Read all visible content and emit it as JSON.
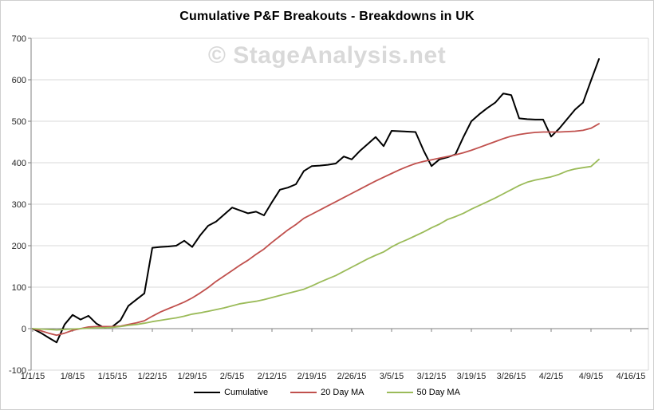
{
  "title": "Cumulative P&F Breakouts - Breakdowns in UK",
  "watermark": "© StageAnalysis.net",
  "colors": {
    "background": "#ffffff",
    "border": "#cfcfcf",
    "gridline": "#d9d9d9",
    "axis": "#808080",
    "watermark_text": "#d9d9d9",
    "cumulative_line": "#000000",
    "ma20_line": "#c0504d",
    "ma50_line": "#9bbb59"
  },
  "chart_data": {
    "type": "line",
    "title": "Cumulative P&F Breakouts - Breakdowns in UK",
    "xlabel": "",
    "ylabel": "",
    "ylim": [
      -100,
      700
    ],
    "y_ticks": [
      700,
      600,
      500,
      400,
      300,
      200,
      100,
      0,
      -100
    ],
    "y_tick_labels": [
      "700",
      "600",
      "500",
      "400",
      "300",
      "200",
      "100",
      "0",
      "-100"
    ],
    "x_tick_labels": [
      "1/1/15",
      "1/8/15",
      "1/15/15",
      "1/22/15",
      "1/29/15",
      "2/5/15",
      "2/12/15",
      "2/19/15",
      "2/26/15",
      "3/5/15",
      "3/12/15",
      "3/19/15",
      "3/26/15",
      "4/2/15",
      "4/9/15",
      "4/16/15"
    ],
    "grid": "horizontal",
    "legend_position": "bottom",
    "x": [
      "1/1/15",
      "1/2/15",
      "1/5/15",
      "1/6/15",
      "1/7/15",
      "1/8/15",
      "1/9/15",
      "1/12/15",
      "1/13/15",
      "1/14/15",
      "1/15/15",
      "1/16/15",
      "1/19/15",
      "1/20/15",
      "1/21/15",
      "1/22/15",
      "1/23/15",
      "1/26/15",
      "1/27/15",
      "1/28/15",
      "1/29/15",
      "1/30/15",
      "2/2/15",
      "2/3/15",
      "2/4/15",
      "2/5/15",
      "2/6/15",
      "2/9/15",
      "2/10/15",
      "2/11/15",
      "2/12/15",
      "2/13/15",
      "2/16/15",
      "2/17/15",
      "2/18/15",
      "2/19/15",
      "2/20/15",
      "2/23/15",
      "2/24/15",
      "2/25/15",
      "2/26/15",
      "2/27/15",
      "3/2/15",
      "3/3/15",
      "3/4/15",
      "3/5/15",
      "3/6/15",
      "3/9/15",
      "3/10/15",
      "3/11/15",
      "3/12/15",
      "3/13/15",
      "3/16/15",
      "3/17/15",
      "3/18/15",
      "3/19/15",
      "3/20/15",
      "3/23/15",
      "3/24/15",
      "3/25/15",
      "3/26/15",
      "3/27/15",
      "3/30/15",
      "3/31/15",
      "4/1/15",
      "4/2/15",
      "4/3/15",
      "4/6/15",
      "4/7/15",
      "4/8/15",
      "4/9/15",
      "4/10/15"
    ],
    "series": [
      {
        "name": "Cumulative",
        "color": "#000000",
        "width": 2,
        "values": [
          0,
          -10,
          -22,
          -33,
          10,
          33,
          22,
          31,
          12,
          2,
          5,
          20,
          55,
          70,
          85,
          195,
          197,
          198,
          200,
          212,
          197,
          225,
          248,
          258,
          275,
          292,
          285,
          278,
          282,
          273,
          305,
          335,
          340,
          348,
          380,
          392,
          393,
          395,
          398,
          415,
          408,
          428,
          445,
          462,
          440,
          477,
          476,
          475,
          474,
          430,
          392,
          408,
          413,
          420,
          462,
          500,
          517,
          532,
          545,
          567,
          563,
          507,
          505,
          504,
          504,
          463,
          482,
          505,
          528,
          545,
          598,
          650
        ]
      },
      {
        "name": "20 Day MA",
        "color": "#c0504d",
        "width": 1.8,
        "values": [
          0,
          -5,
          -11,
          -16,
          -11,
          -4,
          0,
          4,
          5,
          5,
          5,
          6,
          10,
          14,
          19,
          30,
          40,
          48,
          56,
          64,
          74,
          86,
          99,
          114,
          127,
          140,
          153,
          165,
          179,
          192,
          208,
          223,
          238,
          251,
          266,
          276,
          286,
          296,
          306,
          316,
          326,
          336,
          346,
          356,
          365,
          374,
          383,
          391,
          398,
          403,
          407,
          411,
          415,
          419,
          424,
          430,
          437,
          444,
          451,
          458,
          464,
          468,
          471,
          473,
          474,
          474,
          474,
          475,
          476,
          478,
          483,
          494
        ]
      },
      {
        "name": "50 Day MA",
        "color": "#9bbb59",
        "width": 1.8,
        "values": [
          0,
          -1,
          -2,
          -3,
          -2,
          -1,
          0,
          1,
          2,
          2,
          3,
          5,
          8,
          10,
          13,
          17,
          20,
          23,
          26,
          30,
          35,
          38,
          42,
          46,
          50,
          55,
          60,
          63,
          66,
          70,
          75,
          80,
          85,
          90,
          95,
          103,
          112,
          120,
          128,
          138,
          148,
          158,
          168,
          177,
          185,
          197,
          207,
          215,
          224,
          233,
          243,
          252,
          263,
          270,
          278,
          288,
          297,
          306,
          315,
          325,
          335,
          345,
          353,
          358,
          362,
          366,
          372,
          380,
          385,
          388,
          391,
          408
        ]
      }
    ]
  }
}
